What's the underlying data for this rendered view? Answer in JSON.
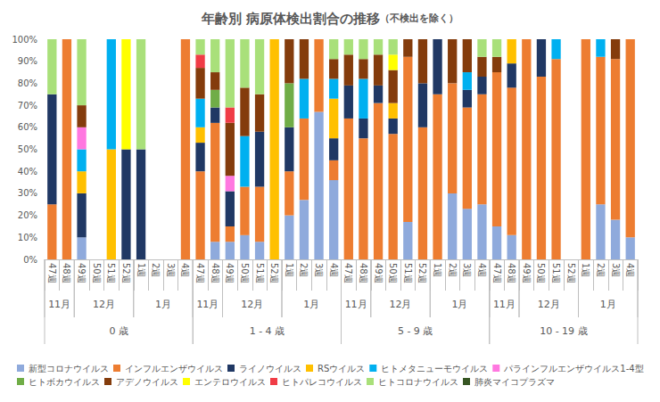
{
  "chart_data": {
    "type": "bar",
    "title": "年齢別 病原体検出割合の推移",
    "subtitle": "（不検出を除く）",
    "stacked": true,
    "grid": false,
    "legend": "bottom",
    "data_labels": false,
    "categories": [
      "47週",
      "48週",
      "49週",
      "50週",
      "51週",
      "52週",
      "1週",
      "2週",
      "3週",
      "4週",
      "47週",
      "48週",
      "49週",
      "50週",
      "51週",
      "52週",
      "1週",
      "2週",
      "3週",
      "4週",
      "47週",
      "48週",
      "49週",
      "50週",
      "51週",
      "52週",
      "1週",
      "2週",
      "3週",
      "4週",
      "47週",
      "48週",
      "49週",
      "50週",
      "51週",
      "52週",
      "1週",
      "2週",
      "3週",
      "4週"
    ],
    "category_levels": [
      [
        "11月",
        "11月",
        "12月",
        "12月",
        "12月",
        "12月",
        "1月",
        "1月",
        "1月",
        "1月",
        "11月",
        "11月",
        "12月",
        "12月",
        "12月",
        "12月",
        "1月",
        "1月",
        "1月",
        "1月",
        "11月",
        "11月",
        "12月",
        "12月",
        "12月",
        "12月",
        "1月",
        "1月",
        "1月",
        "1月",
        "11月",
        "11月",
        "12月",
        "12月",
        "12月",
        "12月",
        "1月",
        "1月",
        "1月",
        "1月"
      ],
      [
        "0 歳",
        "0 歳",
        "0 歳",
        "0 歳",
        "0 歳",
        "0 歳",
        "0 歳",
        "0 歳",
        "0 歳",
        "0 歳",
        "1 - 4 歳",
        "1 - 4 歳",
        "1 - 4 歳",
        "1 - 4 歳",
        "1 - 4 歳",
        "1 - 4 歳",
        "1 - 4 歳",
        "1 - 4 歳",
        "1 - 4 歳",
        "1 - 4 歳",
        "5 - 9 歳",
        "5 - 9 歳",
        "5 - 9 歳",
        "5 - 9 歳",
        "5 - 9 歳",
        "5 - 9 歳",
        "5 - 9 歳",
        "5 - 9 歳",
        "5 - 9 歳",
        "5 - 9 歳",
        "10 - 19 歳",
        "10 - 19 歳",
        "10 - 19 歳",
        "10 - 19 歳",
        "10 - 19 歳",
        "10 - 19 歳",
        "10 - 19 歳",
        "10 - 19 歳",
        "10 - 19 歳",
        "10 - 19 歳"
      ]
    ],
    "ylim": [
      0,
      100
    ],
    "yticks": [
      {
        "value": 0,
        "label": "0%"
      },
      {
        "value": 10,
        "label": "10%"
      },
      {
        "value": 20,
        "label": "20%"
      },
      {
        "value": 30,
        "label": "30%"
      },
      {
        "value": 40,
        "label": "40%"
      },
      {
        "value": 50,
        "label": "50%"
      },
      {
        "value": 60,
        "label": "60%"
      },
      {
        "value": 70,
        "label": "70%"
      },
      {
        "value": 80,
        "label": "80%"
      },
      {
        "value": 90,
        "label": "90%"
      },
      {
        "value": 100,
        "label": "100%"
      }
    ],
    "series": [
      {
        "name": "新型コロナウイルス",
        "color": "#8faadc",
        "values": [
          0,
          0,
          10,
          0,
          0,
          0,
          0,
          0,
          0,
          0,
          0,
          8,
          8,
          11,
          8,
          0,
          20,
          27,
          67,
          36,
          0,
          0,
          0,
          0,
          17,
          0,
          0,
          30,
          23,
          25,
          15,
          11,
          0,
          0,
          0,
          0,
          0,
          25,
          18,
          10
        ]
      },
      {
        "name": "インフルエンザウイルス",
        "color": "#ed7d31",
        "values": [
          25,
          100,
          0,
          0,
          0,
          0,
          0,
          0,
          0,
          100,
          40,
          54,
          7,
          22,
          25,
          0,
          20,
          37,
          33,
          9,
          64,
          55,
          71,
          57,
          75,
          60,
          75,
          50,
          46,
          50,
          70,
          67,
          100,
          83,
          91,
          0,
          100,
          67,
          73,
          90
        ]
      },
      {
        "name": "ライノウイルス",
        "color": "#203864",
        "values": [
          50,
          0,
          20,
          0,
          0,
          50,
          50,
          0,
          0,
          0,
          13,
          7,
          16,
          0,
          25,
          0,
          20,
          0,
          0,
          10,
          15,
          9,
          8,
          7,
          0,
          20,
          25,
          0,
          8,
          8,
          0,
          11,
          0,
          17,
          0,
          0,
          0,
          0,
          0,
          0
        ]
      },
      {
        "name": "RSウイルス",
        "color": "#ffc000",
        "values": [
          0,
          0,
          10,
          0,
          50,
          0,
          0,
          0,
          0,
          0,
          7,
          0,
          0,
          0,
          0,
          100,
          0,
          0,
          0,
          18,
          0,
          0,
          0,
          7,
          0,
          0,
          0,
          0,
          0,
          0,
          0,
          11,
          0,
          0,
          0,
          0,
          0,
          0,
          0,
          0
        ]
      },
      {
        "name": "ヒトメタニューモウイルス",
        "color": "#00b0f0",
        "values": [
          0,
          0,
          10,
          0,
          50,
          0,
          0,
          0,
          0,
          0,
          13,
          0,
          0,
          23,
          0,
          0,
          0,
          18,
          0,
          9,
          0,
          18,
          0,
          0,
          0,
          0,
          0,
          0,
          8,
          0,
          0,
          0,
          0,
          0,
          9,
          0,
          0,
          8,
          0,
          0
        ]
      },
      {
        "name": "パラインフルエンザウイルス1-4型",
        "color": "#ff77e0",
        "values": [
          0,
          0,
          10,
          0,
          0,
          0,
          0,
          0,
          0,
          0,
          0,
          0,
          7,
          0,
          0,
          0,
          0,
          0,
          0,
          0,
          0,
          0,
          0,
          0,
          0,
          0,
          0,
          0,
          0,
          0,
          0,
          0,
          0,
          0,
          0,
          0,
          0,
          0,
          0,
          0
        ]
      },
      {
        "name": "ヒトボカウイルス",
        "color": "#70ad47",
        "values": [
          0,
          0,
          0,
          0,
          0,
          0,
          0,
          0,
          0,
          0,
          0,
          8,
          0,
          0,
          0,
          0,
          20,
          0,
          0,
          0,
          0,
          0,
          0,
          0,
          0,
          0,
          0,
          0,
          0,
          0,
          0,
          0,
          0,
          0,
          0,
          0,
          0,
          0,
          0,
          0
        ]
      },
      {
        "name": "アデノウイルス",
        "color": "#843c0c",
        "values": [
          0,
          0,
          10,
          0,
          0,
          0,
          0,
          0,
          0,
          0,
          14,
          8,
          24,
          22,
          17,
          0,
          20,
          18,
          0,
          9,
          14,
          9,
          14,
          15,
          8,
          20,
          0,
          20,
          15,
          9,
          7,
          0,
          0,
          0,
          0,
          0,
          0,
          0,
          9,
          0
        ]
      },
      {
        "name": "エンテロウイルス",
        "color": "#ffff00",
        "values": [
          0,
          0,
          0,
          0,
          0,
          50,
          0,
          0,
          0,
          0,
          0,
          0,
          0,
          0,
          0,
          0,
          0,
          0,
          0,
          0,
          0,
          0,
          0,
          7,
          0,
          0,
          0,
          0,
          0,
          0,
          0,
          0,
          0,
          0,
          0,
          0,
          0,
          0,
          0,
          0
        ]
      },
      {
        "name": "ヒトパレコウイルス",
        "color": "#f03c46",
        "values": [
          0,
          0,
          0,
          0,
          0,
          0,
          0,
          0,
          0,
          0,
          6,
          0,
          7,
          0,
          0,
          0,
          0,
          0,
          0,
          0,
          0,
          0,
          0,
          0,
          0,
          0,
          0,
          0,
          0,
          0,
          0,
          0,
          0,
          0,
          0,
          0,
          0,
          0,
          0,
          0
        ]
      },
      {
        "name": "ヒトコロナウイルス",
        "color": "#a9e07a",
        "values": [
          25,
          0,
          30,
          0,
          0,
          0,
          50,
          0,
          0,
          0,
          7,
          15,
          31,
          22,
          25,
          0,
          0,
          0,
          0,
          9,
          7,
          9,
          7,
          7,
          0,
          0,
          0,
          0,
          0,
          8,
          8,
          0,
          0,
          0,
          0,
          0,
          0,
          0,
          0,
          0
        ]
      },
      {
        "name": "肺炎マイコプラズマ",
        "color": "#375623",
        "values": [
          0,
          0,
          0,
          0,
          0,
          0,
          0,
          0,
          0,
          0,
          0,
          0,
          0,
          0,
          0,
          0,
          0,
          0,
          0,
          0,
          0,
          0,
          0,
          0,
          0,
          0,
          0,
          0,
          0,
          0,
          0,
          0,
          0,
          0,
          0,
          0,
          0,
          0,
          0,
          0
        ]
      }
    ]
  }
}
